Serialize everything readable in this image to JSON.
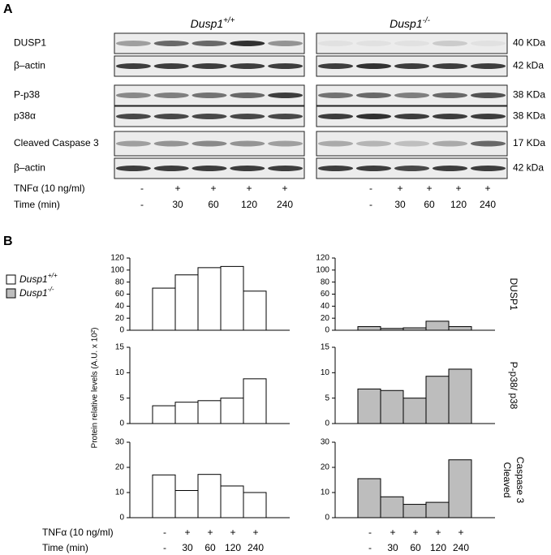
{
  "panel_a": {
    "label": "A",
    "genotypes": [
      {
        "name": "Dusp1",
        "sup": "+/+"
      },
      {
        "name": "Dusp1",
        "sup": "-/-"
      }
    ],
    "rows": [
      {
        "label": "DUSP1",
        "size": "40 KDa"
      },
      {
        "label": "β–actin",
        "size": "42 kDa"
      },
      {
        "label": "P-p38",
        "size": "38 KDa"
      },
      {
        "label": "p38α",
        "size": "38 KDa"
      },
      {
        "label": "Cleaved Caspase 3",
        "size": "17 KDa"
      },
      {
        "label": "β–actin",
        "size": "42 kDa"
      }
    ]
  },
  "treatment": {
    "tnf_label": "TNFα (10 ng/ml)",
    "time_label": "Time (min)",
    "tnf": [
      "-",
      "+",
      "+",
      "+",
      "+"
    ],
    "time": [
      "-",
      "30",
      "60",
      "120",
      "240"
    ]
  },
  "panel_b": {
    "label": "B",
    "ylabel": "Protein relative levels (A.U. x 10²)",
    "legend": [
      {
        "name": "Dusp1",
        "sup": "+/+",
        "color": "#ffffff"
      },
      {
        "name": "Dusp1",
        "sup": "-/-",
        "color": "#bdbdbd"
      }
    ]
  },
  "chart_data": [
    {
      "type": "bar",
      "ylim": [
        0,
        120
      ],
      "yticks": [
        0,
        20,
        40,
        60,
        80,
        100,
        120
      ],
      "series": [
        {
          "color": "#ffffff",
          "values": [
            70,
            92,
            104,
            106,
            65
          ]
        }
      ]
    },
    {
      "type": "bar",
      "title": "DUSP1",
      "ylim": [
        0,
        120
      ],
      "yticks": [
        0,
        20,
        40,
        60,
        80,
        100,
        120
      ],
      "series": [
        {
          "color": "#bdbdbd",
          "values": [
            6,
            3,
            4,
            15,
            6
          ]
        }
      ]
    },
    {
      "type": "bar",
      "ylim": [
        0,
        15
      ],
      "yticks": [
        0,
        5,
        10,
        15
      ],
      "series": [
        {
          "color": "#ffffff",
          "values": [
            3.5,
            4.2,
            4.5,
            5.0,
            8.8
          ]
        }
      ]
    },
    {
      "type": "bar",
      "title": "P-p38/ p38",
      "ylim": [
        0,
        15
      ],
      "yticks": [
        0,
        5,
        10,
        15
      ],
      "series": [
        {
          "color": "#bdbdbd",
          "values": [
            6.8,
            6.5,
            5.0,
            9.3,
            10.7
          ]
        }
      ]
    },
    {
      "type": "bar",
      "ylim": [
        0,
        30
      ],
      "yticks": [
        0,
        10,
        20,
        30
      ],
      "series": [
        {
          "color": "#ffffff",
          "values": [
            17,
            10.8,
            17.2,
            12.6,
            10
          ]
        }
      ]
    },
    {
      "type": "bar",
      "title": [
        "Cleaved",
        "Caspase 3"
      ],
      "ylim": [
        0,
        30
      ],
      "yticks": [
        0,
        10,
        20,
        30
      ],
      "series": [
        {
          "color": "#bdbdbd",
          "values": [
            15.5,
            8.3,
            5.3,
            6.1,
            23
          ]
        }
      ]
    }
  ]
}
